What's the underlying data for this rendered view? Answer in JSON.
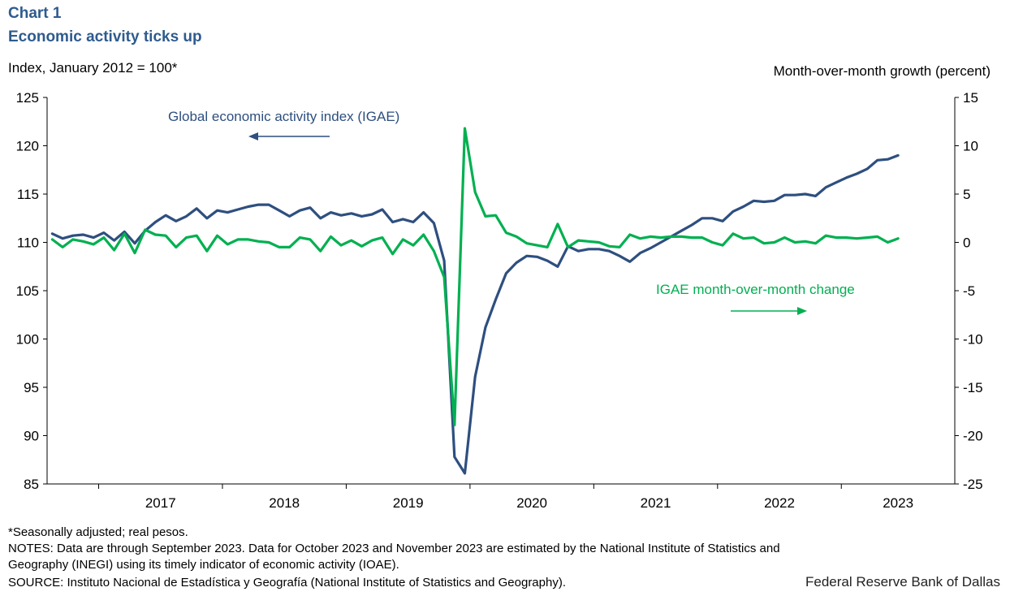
{
  "header": {
    "label": "Chart 1",
    "title": "Economic activity ticks up",
    "ylabel_left": "Index, January 2012 = 100*",
    "ylabel_right": "Month-over-month  growth (percent)"
  },
  "annotations": {
    "igae": "Global economic  activity index  (IGAE)",
    "mom": "IGAE month-over-month  change"
  },
  "footer": {
    "note1": "*Seasonally adjusted; real pesos.",
    "note2": "NOTES: Data are through September 2023. Data for October 2023 and November 2023 are estimated by the National Institute of Statistics and",
    "note3": "Geography (INEGI) using its timely indicator of economic activity (IOAE).",
    "source": "SOURCE: Instituto Nacional de Estadística y Geografía (National Institute of Statistics and Geography).",
    "credit": "Federal Reserve Bank of Dallas"
  },
  "colors": {
    "igae": "#2e4f7f",
    "mom": "#00b050",
    "title": "#2e5b8e"
  },
  "chart_data": {
    "type": "line",
    "x_start": "2016-08",
    "x_end": "2023-11",
    "x_ticks": [
      "2017",
      "2018",
      "2019",
      "2020",
      "2021",
      "2022",
      "2023"
    ],
    "ylim_left": [
      85,
      125
    ],
    "ylim_right": [
      -25,
      15
    ],
    "yticks_left": [
      "125",
      "120",
      "115",
      "110",
      "105",
      "100",
      "95",
      "90",
      "85"
    ],
    "yticks_right": [
      "15",
      "10",
      "5",
      "0",
      "-5",
      "-10",
      "-15",
      "-20",
      "-25"
    ],
    "series": [
      {
        "name": "Global economic activity index (IGAE)",
        "axis": "left",
        "values": [
          110.9,
          110.4,
          110.7,
          110.8,
          110.5,
          111.0,
          110.2,
          111.1,
          109.9,
          111.2,
          112.1,
          112.8,
          112.2,
          112.7,
          113.5,
          112.5,
          113.3,
          113.1,
          113.4,
          113.7,
          113.9,
          113.9,
          113.3,
          112.7,
          113.3,
          113.6,
          112.5,
          113.1,
          112.8,
          113.0,
          112.7,
          112.9,
          113.4,
          112.1,
          112.4,
          112.1,
          113.1,
          112.0,
          108.1,
          87.8,
          86.1,
          96.1,
          101.2,
          104.1,
          106.8,
          107.9,
          108.6,
          108.5,
          108.1,
          107.5,
          109.6,
          109.1,
          109.3,
          109.3,
          109.1,
          108.6,
          108.0,
          108.9,
          109.4,
          110.0,
          110.6,
          111.2,
          111.8,
          112.5,
          112.5,
          112.2,
          113.2,
          113.7,
          114.3,
          114.2,
          114.3,
          114.9,
          114.9,
          115.0,
          114.8,
          115.7,
          116.2,
          116.7,
          117.1,
          117.6,
          118.5,
          118.6,
          119.0
        ]
      },
      {
        "name": "IGAE month-over-month change",
        "axis": "right",
        "values": [
          0.3,
          -0.5,
          0.3,
          0.1,
          -0.2,
          0.5,
          -0.8,
          0.9,
          -1.1,
          1.3,
          0.8,
          0.7,
          -0.5,
          0.5,
          0.7,
          -0.9,
          0.7,
          -0.2,
          0.3,
          0.3,
          0.1,
          0.0,
          -0.5,
          -0.5,
          0.5,
          0.3,
          -0.9,
          0.6,
          -0.3,
          0.2,
          -0.4,
          0.2,
          0.5,
          -1.2,
          0.3,
          -0.3,
          0.8,
          -0.9,
          -3.6,
          -18.9,
          11.8,
          5.2,
          2.7,
          2.8,
          1.0,
          0.6,
          -0.1,
          -0.3,
          -0.5,
          1.9,
          -0.5,
          0.2,
          0.1,
          0.0,
          -0.4,
          -0.5,
          0.8,
          0.4,
          0.6,
          0.5,
          0.6,
          0.6,
          0.5,
          0.5,
          0.0,
          -0.3,
          0.9,
          0.4,
          0.5,
          -0.1,
          0.0,
          0.5,
          0.0,
          0.1,
          -0.1,
          0.7,
          0.5,
          0.5,
          0.4,
          0.5,
          0.6,
          0.0,
          0.4
        ]
      }
    ]
  }
}
